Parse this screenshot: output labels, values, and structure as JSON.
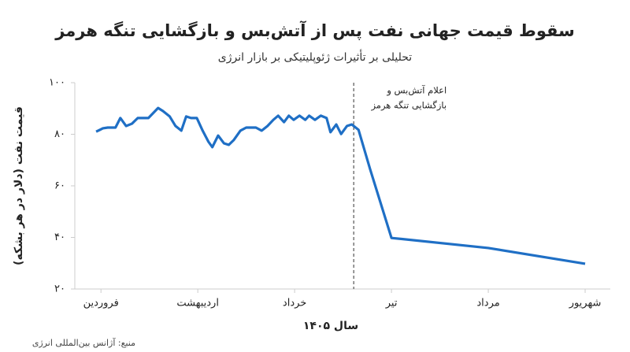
{
  "chart_data": {
    "type": "line",
    "title": "سقوط قیمت جهانی نفت پس از آتش‌بس و بازگشایی تنگه هرمز",
    "subtitle": "تحلیلی بر تأثیرات ژئوپلیتیکی بر بازار انرژی",
    "y_label": "قیمت نفت (دلار در هر بشکه)",
    "x_label": "سال ۱۴۰۵",
    "source": "منبع: آژانس بین‌المللی انرژی",
    "x": [
      -0.05,
      0.02,
      0.07,
      0.15,
      0.2,
      0.26,
      0.32,
      0.38,
      0.49,
      0.59,
      0.64,
      0.71,
      0.77,
      0.83,
      0.88,
      0.93,
      0.99,
      1.05,
      1.11,
      1.15,
      1.21,
      1.27,
      1.32,
      1.37,
      1.44,
      1.5,
      1.6,
      1.66,
      1.72,
      1.78,
      1.83,
      1.89,
      1.94,
      1.99,
      2.05,
      2.11,
      2.15,
      2.21,
      2.27,
      2.33,
      2.37,
      2.43,
      2.48,
      2.54,
      2.59,
      2.66,
      2.78,
      3,
      4,
      5
    ],
    "series": [
      {
        "color": "#1f6fc5",
        "values": [
          81,
          82.3,
          82.6,
          82.6,
          86.3,
          83.2,
          84.1,
          86.3,
          86.3,
          90.2,
          89,
          86.9,
          83.2,
          81.4,
          86.9,
          86.3,
          86.3,
          81.4,
          77.1,
          75,
          79.5,
          76.5,
          75.9,
          77.7,
          81.4,
          82.6,
          82.6,
          81.4,
          83.2,
          85.6,
          87.2,
          84.7,
          87.2,
          85.6,
          87.2,
          85.6,
          87.2,
          85.6,
          87.2,
          86.3,
          80.8,
          83.8,
          80.1,
          83.2,
          83.8,
          81.7,
          66.4,
          39.8,
          35.9,
          29.8
        ]
      }
    ],
    "xlim": [
      -0.27,
      5.26
    ],
    "ylim": [
      20,
      100
    ],
    "xticks": [
      {
        "value": 0,
        "label": "فروردین"
      },
      {
        "value": 1,
        "label": "اردیبهشت"
      },
      {
        "value": 2,
        "label": "خرداد"
      },
      {
        "value": 3,
        "label": "تیر"
      },
      {
        "value": 4,
        "label": "مرداد"
      },
      {
        "value": 5,
        "label": "شهریور"
      }
    ],
    "yticks": [
      {
        "value": 20,
        "label": "۲۰"
      },
      {
        "value": 40,
        "label": "۴۰"
      },
      {
        "value": 60,
        "label": "۶۰"
      },
      {
        "value": 80,
        "label": "۸۰"
      },
      {
        "value": 100,
        "label": "۱۰۰"
      }
    ],
    "grid": false,
    "annotation": {
      "x": 2.61,
      "lines": [
        "اعلام آتش‌بس و",
        "بازگشایی تنگه هرمز"
      ]
    }
  }
}
